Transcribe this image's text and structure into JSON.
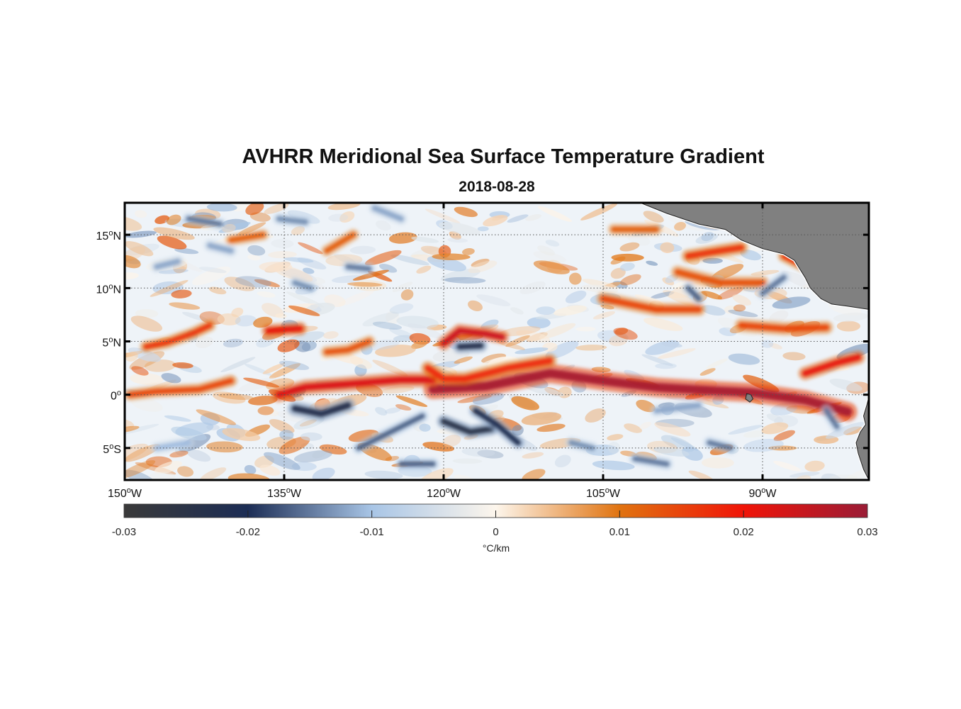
{
  "title": "AVHRR Meridional Sea Surface Temperature Gradient",
  "subtitle": "2018-08-28",
  "map": {
    "lon_range": [
      -150,
      -80
    ],
    "lat_range": [
      -8,
      18
    ],
    "lat_ticks": [
      {
        "value": 15,
        "label": "15",
        "hemi": "N"
      },
      {
        "value": 10,
        "label": "10",
        "hemi": "N"
      },
      {
        "value": 5,
        "label": "5",
        "hemi": "N"
      },
      {
        "value": 0,
        "label": "0",
        "hemi": ""
      },
      {
        "value": -5,
        "label": "5",
        "hemi": "S"
      }
    ],
    "lon_ticks": [
      {
        "value": -150,
        "label": "150",
        "hemi": "W"
      },
      {
        "value": -135,
        "label": "135",
        "hemi": "W"
      },
      {
        "value": -120,
        "label": "120",
        "hemi": "W"
      },
      {
        "value": -105,
        "label": "105",
        "hemi": "W"
      },
      {
        "value": -90,
        "label": "90",
        "hemi": "W"
      }
    ],
    "land_color": "#808080",
    "features": [
      {
        "type": "front",
        "sign": 1,
        "strength": 0.95,
        "width": 13,
        "points": [
          [
            -121,
            0.5
          ],
          [
            -116,
            0.8
          ],
          [
            -110,
            2
          ],
          [
            -105,
            1.3
          ],
          [
            -100,
            0.7
          ],
          [
            -95,
            0.4
          ],
          [
            -91,
            0.2
          ],
          [
            -86,
            -0.5
          ],
          [
            -82,
            -1.6
          ]
        ]
      },
      {
        "type": "front",
        "sign": 1,
        "strength": 0.75,
        "width": 10,
        "points": [
          [
            -135.5,
            0
          ],
          [
            -133,
            0.7
          ],
          [
            -129,
            1
          ],
          [
            -124,
            1.4
          ],
          [
            -121,
            1.4
          ]
        ]
      },
      {
        "type": "front",
        "sign": 1,
        "strength": 0.8,
        "width": 9,
        "points": [
          [
            -120,
            4.8
          ],
          [
            -118.5,
            6
          ],
          [
            -116,
            5.7
          ],
          [
            -114.5,
            5.4
          ]
        ]
      },
      {
        "type": "front",
        "sign": 1,
        "strength": 0.6,
        "width": 9,
        "points": [
          [
            -121.5,
            2.5
          ],
          [
            -120,
            1.5
          ],
          [
            -118,
            1.5
          ],
          [
            -114,
            2.5
          ],
          [
            -110,
            3.2
          ]
        ]
      },
      {
        "type": "front",
        "sign": 1,
        "strength": 0.7,
        "width": 9,
        "points": [
          [
            -136.5,
            6
          ],
          [
            -133.5,
            6.2
          ]
        ]
      },
      {
        "type": "front",
        "sign": 1,
        "strength": 0.55,
        "width": 8,
        "points": [
          [
            -148,
            4.5
          ],
          [
            -146,
            4.9
          ],
          [
            -143.5,
            5.8
          ],
          [
            -142,
            6.5
          ]
        ]
      },
      {
        "type": "front",
        "sign": 1,
        "strength": 0.5,
        "width": 8,
        "points": [
          [
            -149.5,
            0
          ],
          [
            -147,
            0.3
          ],
          [
            -143,
            0.5
          ],
          [
            -140,
            1.3
          ]
        ]
      },
      {
        "type": "front",
        "sign": 1,
        "strength": 0.5,
        "width": 9,
        "points": [
          [
            -105,
            9
          ],
          [
            -100,
            8
          ],
          [
            -96,
            8
          ]
        ]
      },
      {
        "type": "front",
        "sign": 1,
        "strength": 0.55,
        "width": 9,
        "points": [
          [
            -97,
            13
          ],
          [
            -94,
            13.5
          ],
          [
            -92,
            13.8
          ]
        ]
      },
      {
        "type": "front",
        "sign": 1,
        "strength": 0.45,
        "width": 9,
        "points": [
          [
            -98,
            11.5
          ],
          [
            -94,
            10.5
          ],
          [
            -90,
            10.5
          ]
        ]
      },
      {
        "type": "front",
        "sign": 1,
        "strength": 0.5,
        "width": 9,
        "points": [
          [
            -92,
            6.5
          ],
          [
            -88,
            6.2
          ],
          [
            -84,
            6.3
          ]
        ]
      },
      {
        "type": "front",
        "sign": 1,
        "strength": 0.7,
        "width": 9,
        "points": [
          [
            -86,
            2
          ],
          [
            -83,
            3
          ],
          [
            -81,
            3.5
          ]
        ]
      },
      {
        "type": "front",
        "sign": 1,
        "strength": 0.4,
        "width": 8,
        "points": [
          [
            -140,
            14.5
          ],
          [
            -137,
            15
          ]
        ]
      },
      {
        "type": "front",
        "sign": 1,
        "strength": 0.4,
        "width": 8,
        "points": [
          [
            -131,
            13.5
          ],
          [
            -128.5,
            15
          ]
        ]
      },
      {
        "type": "front",
        "sign": 1,
        "strength": 0.45,
        "width": 8,
        "points": [
          [
            -131,
            4
          ],
          [
            -129,
            4.2
          ],
          [
            -127,
            5
          ]
        ]
      },
      {
        "type": "front",
        "sign": 1,
        "strength": 0.4,
        "width": 8,
        "points": [
          [
            -104,
            15.5
          ],
          [
            -100,
            15.5
          ]
        ]
      },
      {
        "type": "front",
        "sign": 1,
        "strength": 0.55,
        "width": 8,
        "points": [
          [
            -88,
            13
          ],
          [
            -85,
            11.5
          ]
        ]
      },
      {
        "type": "front",
        "sign": -1,
        "strength": 0.75,
        "width": 10,
        "points": [
          [
            -134,
            -1.3
          ],
          [
            -131.5,
            -1.8
          ],
          [
            -129,
            -1
          ]
        ]
      },
      {
        "type": "front",
        "sign": -1,
        "strength": 0.8,
        "width": 9,
        "points": [
          [
            -120,
            -2.5
          ],
          [
            -117.5,
            -3.5
          ],
          [
            -115.5,
            -3.2
          ]
        ]
      },
      {
        "type": "front",
        "sign": -1,
        "strength": 0.7,
        "width": 9,
        "points": [
          [
            -117,
            -1.5
          ],
          [
            -115,
            -2.8
          ],
          [
            -113,
            -4.5
          ]
        ]
      },
      {
        "type": "front",
        "sign": -1,
        "strength": 0.75,
        "width": 9,
        "points": [
          [
            -118.5,
            4.5
          ],
          [
            -116.5,
            4.6
          ]
        ]
      },
      {
        "type": "front",
        "sign": -1,
        "strength": 0.55,
        "width": 8,
        "points": [
          [
            -128,
            -5
          ],
          [
            -125,
            -3.5
          ],
          [
            -122,
            -2
          ]
        ]
      },
      {
        "type": "front",
        "sign": -1,
        "strength": 0.55,
        "width": 8,
        "points": [
          [
            -124,
            -6.5
          ],
          [
            -121,
            -6.5
          ]
        ]
      },
      {
        "type": "front",
        "sign": -1,
        "strength": 0.5,
        "width": 8,
        "points": [
          [
            -144,
            16.5
          ],
          [
            -141,
            16
          ]
        ]
      },
      {
        "type": "front",
        "sign": -1,
        "strength": 0.45,
        "width": 8,
        "points": [
          [
            -135.5,
            16.5
          ],
          [
            -133,
            16.2
          ]
        ]
      },
      {
        "type": "front",
        "sign": -1,
        "strength": 0.5,
        "width": 8,
        "points": [
          [
            -129,
            12
          ],
          [
            -127,
            11.8
          ]
        ]
      },
      {
        "type": "front",
        "sign": -1,
        "strength": 0.45,
        "width": 8,
        "points": [
          [
            -134,
            10.5
          ],
          [
            -132.5,
            10
          ]
        ]
      },
      {
        "type": "front",
        "sign": -1,
        "strength": 0.4,
        "width": 8,
        "points": [
          [
            -126.5,
            17.5
          ],
          [
            -124,
            16.5
          ]
        ]
      },
      {
        "type": "front",
        "sign": -1,
        "strength": 0.55,
        "width": 8,
        "points": [
          [
            -97,
            10
          ],
          [
            -96,
            9
          ]
        ]
      },
      {
        "type": "front",
        "sign": -1,
        "strength": 0.5,
        "width": 8,
        "points": [
          [
            -90,
            9.5
          ],
          [
            -88,
            11
          ]
        ]
      },
      {
        "type": "front",
        "sign": -1,
        "strength": 0.5,
        "width": 8,
        "points": [
          [
            -102,
            -6
          ],
          [
            -99,
            -6.5
          ]
        ]
      },
      {
        "type": "front",
        "sign": -1,
        "strength": 0.5,
        "width": 8,
        "points": [
          [
            -95,
            -4.5
          ],
          [
            -93,
            -5
          ]
        ]
      },
      {
        "type": "front",
        "sign": -1,
        "strength": 0.45,
        "width": 8,
        "points": [
          [
            -108,
            -4.5
          ],
          [
            -106,
            -5
          ]
        ]
      },
      {
        "type": "front",
        "sign": -1,
        "strength": 0.5,
        "width": 8,
        "points": [
          [
            -84,
            -1.5
          ],
          [
            -83,
            -3
          ]
        ]
      },
      {
        "type": "front",
        "sign": -1,
        "strength": 0.4,
        "width": 8,
        "points": [
          [
            -147,
            12
          ],
          [
            -145,
            12.5
          ]
        ]
      },
      {
        "type": "front",
        "sign": -1,
        "strength": 0.4,
        "width": 8,
        "points": [
          [
            -142,
            14
          ],
          [
            -140,
            13.5
          ]
        ]
      },
      {
        "type": "front",
        "sign": -1,
        "strength": 0.4,
        "width": 8,
        "points": [
          [
            -100,
            -1.5
          ],
          [
            -96,
            -1
          ]
        ]
      },
      {
        "type": "front",
        "sign": -1,
        "strength": 0.35,
        "width": 8,
        "points": [
          [
            -147,
            -5
          ],
          [
            -144,
            -4.5
          ]
        ]
      }
    ],
    "land": [
      {
        "name": "central-america",
        "points": [
          [
            -101.5,
            18
          ],
          [
            -99,
            17
          ],
          [
            -96,
            16
          ],
          [
            -93.5,
            15.5
          ],
          [
            -92,
            14.5
          ],
          [
            -90,
            13.7
          ],
          [
            -88,
            13.2
          ],
          [
            -87,
            12.6
          ],
          [
            -86,
            11
          ],
          [
            -85.5,
            10
          ],
          [
            -84.5,
            9
          ],
          [
            -83.5,
            8.5
          ],
          [
            -82,
            8.3
          ],
          [
            -80,
            8
          ],
          [
            -80,
            18
          ]
        ]
      },
      {
        "name": "south-america-coast",
        "points": [
          [
            -80,
            -0.2
          ],
          [
            -80.2,
            -1
          ],
          [
            -80.5,
            -2
          ],
          [
            -80.3,
            -2.8
          ],
          [
            -80.8,
            -3.5
          ],
          [
            -81.2,
            -4.5
          ],
          [
            -81,
            -5.5
          ],
          [
            -80.5,
            -7
          ],
          [
            -80,
            -8
          ]
        ]
      }
    ],
    "islands": [
      {
        "name": "galapagos",
        "points": [
          [
            -91.5,
            0.1
          ],
          [
            -91.1,
            0.0
          ],
          [
            -90.9,
            -0.4
          ],
          [
            -91.2,
            -0.7
          ],
          [
            -91.6,
            -0.4
          ]
        ]
      }
    ]
  },
  "colorbar": {
    "min": -0.03,
    "max": 0.03,
    "tick_values": [
      -0.03,
      -0.02,
      -0.01,
      0,
      0.01,
      0.02,
      0.03
    ],
    "tick_labels": [
      "-0.03",
      "-0.02",
      "-0.01",
      "0",
      "0.01",
      "0.02",
      "0.03"
    ],
    "unit_label": "°C/km",
    "colors": [
      "#3a3a3a",
      "#1c2d55",
      "#a8c5e6",
      "#fdf6ec",
      "#e07310",
      "#f01408",
      "#9a1c36"
    ]
  },
  "colors": {
    "grid": "#555555",
    "frame": "#000000"
  }
}
